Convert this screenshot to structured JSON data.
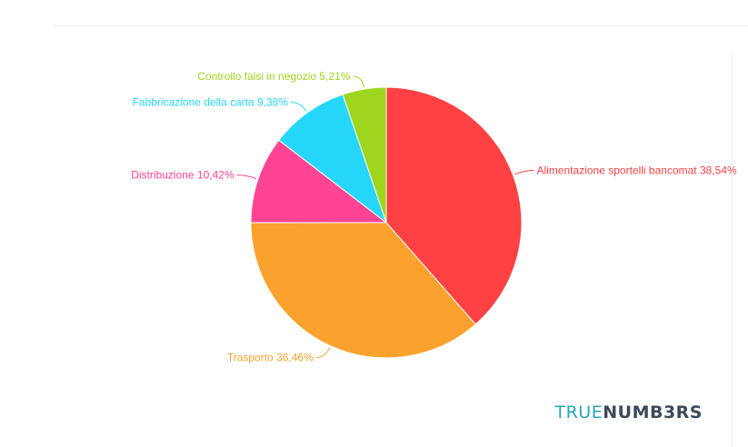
{
  "chart_data": {
    "type": "pie",
    "title": "",
    "slices": [
      {
        "label": "Alimentazione sportelli bancomat",
        "value": 38.54,
        "value_text": "38,54%",
        "color": "#ff4143"
      },
      {
        "label": "Trasporto",
        "value": 36.46,
        "value_text": "36,46%",
        "color": "#fba22e"
      },
      {
        "label": "Distribuzione",
        "value": 10.42,
        "value_text": "10,42%",
        "color": "#ff4494"
      },
      {
        "label": "Fabbricazione della carta",
        "value": 9.38,
        "value_text": "9,38%",
        "color": "#27d7fb"
      },
      {
        "label": "Controllo falsi in negozio",
        "value": 5.21,
        "value_text": "5,21%",
        "color": "#9dd61c"
      }
    ],
    "start_angle": "12 o'clock",
    "direction": "clockwise",
    "legend": "none",
    "labels": "outside with leader lines"
  },
  "branding": {
    "logo_part1": "TRUE",
    "logo_part2": "NUMB3RS"
  }
}
